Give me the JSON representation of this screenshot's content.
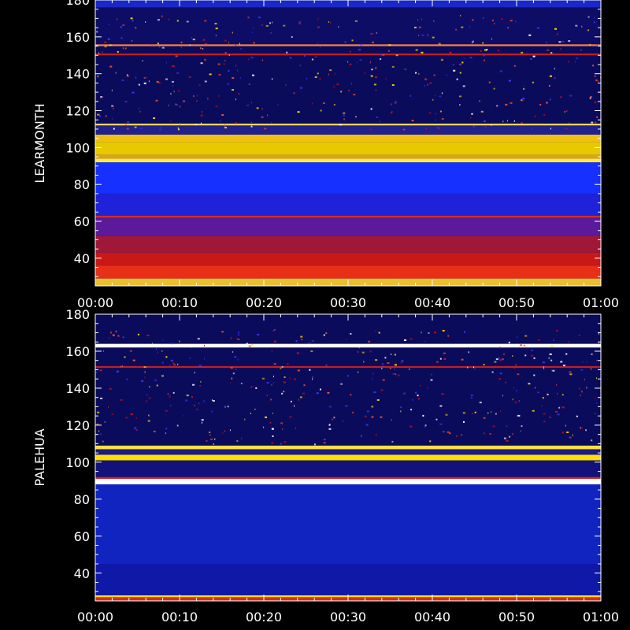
{
  "chart_data": [
    {
      "type": "heatmap",
      "station": "LEARMONTH",
      "ylabel": "LEARMONTH",
      "yticks": [
        40,
        60,
        80,
        100,
        120,
        140,
        160,
        180
      ],
      "ylim": [
        25,
        180
      ],
      "xticks": [
        "00:00",
        "00:10",
        "00:20",
        "00:30",
        "00:40",
        "00:50",
        "01:00"
      ],
      "xlim_minutes": [
        0,
        60
      ],
      "colors": {
        "background": "#000000",
        "axes": "#ffffff",
        "low_intensity": "#0b0b5c",
        "mid_intensity": "#1530ff",
        "high_intensity": "#d01010",
        "peak_intensity": "#ffe000"
      },
      "bands": [
        {
          "from": 25,
          "to": 29,
          "color": "#e8c030",
          "level": "peak"
        },
        {
          "from": 29,
          "to": 36,
          "color": "#e83018",
          "level": "high"
        },
        {
          "from": 36,
          "to": 43,
          "color": "#c81818",
          "level": "high"
        },
        {
          "from": 43,
          "to": 52,
          "color": "#a01838",
          "level": "high"
        },
        {
          "from": 52,
          "to": 62,
          "color": "#5a1a9a",
          "level": "mid"
        },
        {
          "from": 62,
          "to": 63,
          "color": "#d03020",
          "level": "high"
        },
        {
          "from": 63,
          "to": 75,
          "color": "#1e22d8",
          "level": "mid"
        },
        {
          "from": 75,
          "to": 92,
          "color": "#1530ff",
          "level": "mid"
        },
        {
          "from": 92,
          "to": 94,
          "color": "#ffee40",
          "level": "peak"
        },
        {
          "from": 94,
          "to": 96,
          "color": "#e0a020",
          "level": "peak"
        },
        {
          "from": 96,
          "to": 103,
          "color": "#e8c800",
          "level": "peak"
        },
        {
          "from": 103,
          "to": 107,
          "color": "#f0c010",
          "level": "peak"
        },
        {
          "from": 107,
          "to": 112,
          "color": "#22208a",
          "level": "low"
        },
        {
          "from": 112,
          "to": 113,
          "color": "#ffd860",
          "level": "peak"
        },
        {
          "from": 113,
          "to": 150,
          "color": "#0b0b5c",
          "level": "low"
        },
        {
          "from": 150,
          "to": 151,
          "color": "#c02020",
          "level": "high"
        },
        {
          "from": 151,
          "to": 155,
          "color": "#0b0b5c",
          "level": "low"
        },
        {
          "from": 155,
          "to": 156,
          "color": "#ff8040",
          "level": "high"
        },
        {
          "from": 156,
          "to": 176,
          "color": "#0d0d66",
          "level": "low"
        },
        {
          "from": 176,
          "to": 180,
          "color": "#1a28c8",
          "level": "mid"
        }
      ]
    },
    {
      "type": "heatmap",
      "station": "PALEHUA",
      "ylabel": "PALEHUA",
      "yticks": [
        40,
        60,
        80,
        100,
        120,
        140,
        160,
        180
      ],
      "ylim": [
        25,
        180
      ],
      "xticks": [
        "00:00",
        "00:10",
        "00:20",
        "00:30",
        "00:40",
        "00:50",
        "01:00"
      ],
      "xlim_minutes": [
        0,
        60
      ],
      "colors": {
        "background": "#000000",
        "axes": "#ffffff",
        "low_intensity": "#0b0b5c",
        "mid_intensity": "#1530ff",
        "high_intensity": "#d01010",
        "peak_intensity": "#ffe000"
      },
      "bands": [
        {
          "from": 25,
          "to": 27,
          "color": "#d03020",
          "level": "high"
        },
        {
          "from": 27,
          "to": 28,
          "color": "#ffe000",
          "level": "peak"
        },
        {
          "from": 28,
          "to": 45,
          "color": "#1018a8",
          "level": "mid"
        },
        {
          "from": 45,
          "to": 88,
          "color": "#1224c0",
          "level": "mid"
        },
        {
          "from": 88,
          "to": 91,
          "color": "#ffffff",
          "level": "peak"
        },
        {
          "from": 91,
          "to": 92,
          "color": "#d02020",
          "level": "high"
        },
        {
          "from": 92,
          "to": 101,
          "color": "#12127a",
          "level": "low"
        },
        {
          "from": 101,
          "to": 104,
          "color": "#ffe000",
          "level": "peak"
        },
        {
          "from": 104,
          "to": 107,
          "color": "#1a1a8a",
          "level": "low"
        },
        {
          "from": 107,
          "to": 109,
          "color": "#ffe040",
          "level": "peak"
        },
        {
          "from": 109,
          "to": 151,
          "color": "#0b0b5c",
          "level": "low"
        },
        {
          "from": 151,
          "to": 152,
          "color": "#c02020",
          "level": "high"
        },
        {
          "from": 152,
          "to": 162,
          "color": "#0b0b5c",
          "level": "low"
        },
        {
          "from": 162,
          "to": 164,
          "color": "#ffffff",
          "level": "peak"
        },
        {
          "from": 164,
          "to": 180,
          "color": "#0b0b5c",
          "level": "low"
        }
      ]
    }
  ]
}
